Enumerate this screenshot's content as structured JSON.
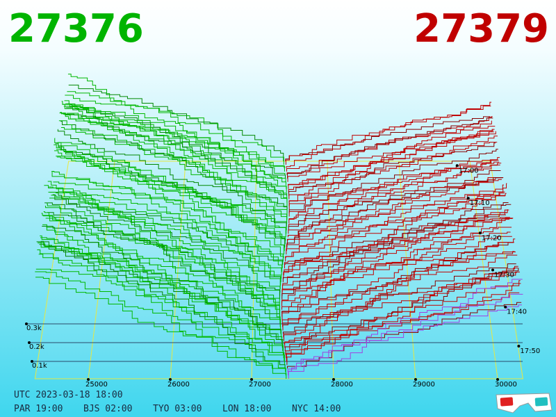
{
  "bid": "27376",
  "ask": "27379",
  "price_axis": [
    "25000",
    "26000",
    "27000",
    "28000",
    "29000",
    "30000"
  ],
  "depth_axis": [
    "0.3k",
    "0.2k",
    "0.1k"
  ],
  "time_axis": [
    "17:00",
    "17:10",
    "17:20",
    "17:30",
    "17:40",
    "17:50"
  ],
  "clock": {
    "utc": "UTC 2023-03-18 18:00",
    "cities": [
      "PAR 19:00",
      "BJS 02:00",
      "TYO 03:00",
      "LON 18:00",
      "NYC 14:00"
    ]
  }
}
